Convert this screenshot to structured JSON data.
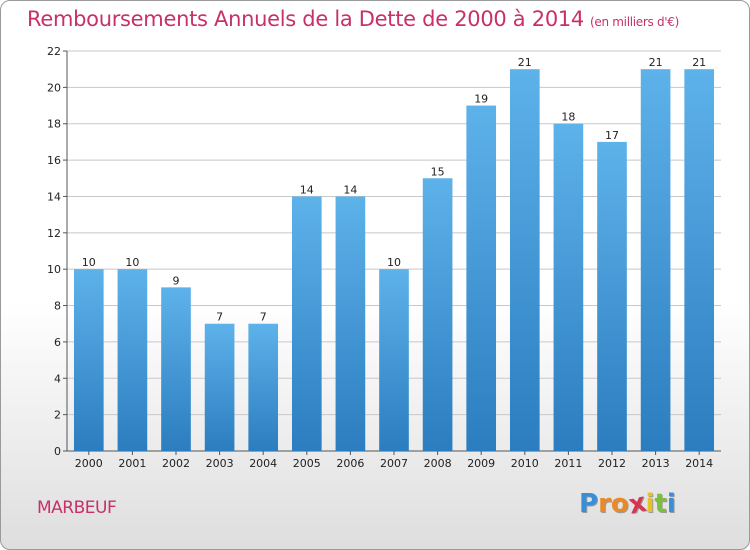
{
  "header": {
    "title": "Remboursements Annuels de la Dette de 2000 à 2014",
    "subtitle": "(en milliers d'€)"
  },
  "footer": {
    "commune": "MARBEUF",
    "logo_text": "Proxiti"
  },
  "colors": {
    "title": "#c8306a",
    "bar_top": "#5eb2ea",
    "bar_bottom": "#2b7dbf",
    "grid": "#c8c8c8",
    "logo_letters": [
      "#3a8ed6",
      "#e88a2a",
      "#e88a2a",
      "#d6354f",
      "#e8c12a",
      "#7cbd42",
      "#3a8ed6"
    ]
  },
  "chart_data": {
    "type": "bar",
    "categories": [
      "2000",
      "2001",
      "2002",
      "2003",
      "2004",
      "2005",
      "2006",
      "2007",
      "2008",
      "2009",
      "2010",
      "2011",
      "2012",
      "2013",
      "2014"
    ],
    "values": [
      10,
      10,
      9,
      7,
      7,
      14,
      14,
      10,
      15,
      19,
      21,
      18,
      17,
      21,
      21
    ],
    "ylim": [
      0,
      22
    ],
    "yticks": [
      0,
      2,
      4,
      6,
      8,
      10,
      12,
      14,
      16,
      18,
      20,
      22
    ],
    "grid": true,
    "xlabel": "",
    "ylabel": ""
  }
}
